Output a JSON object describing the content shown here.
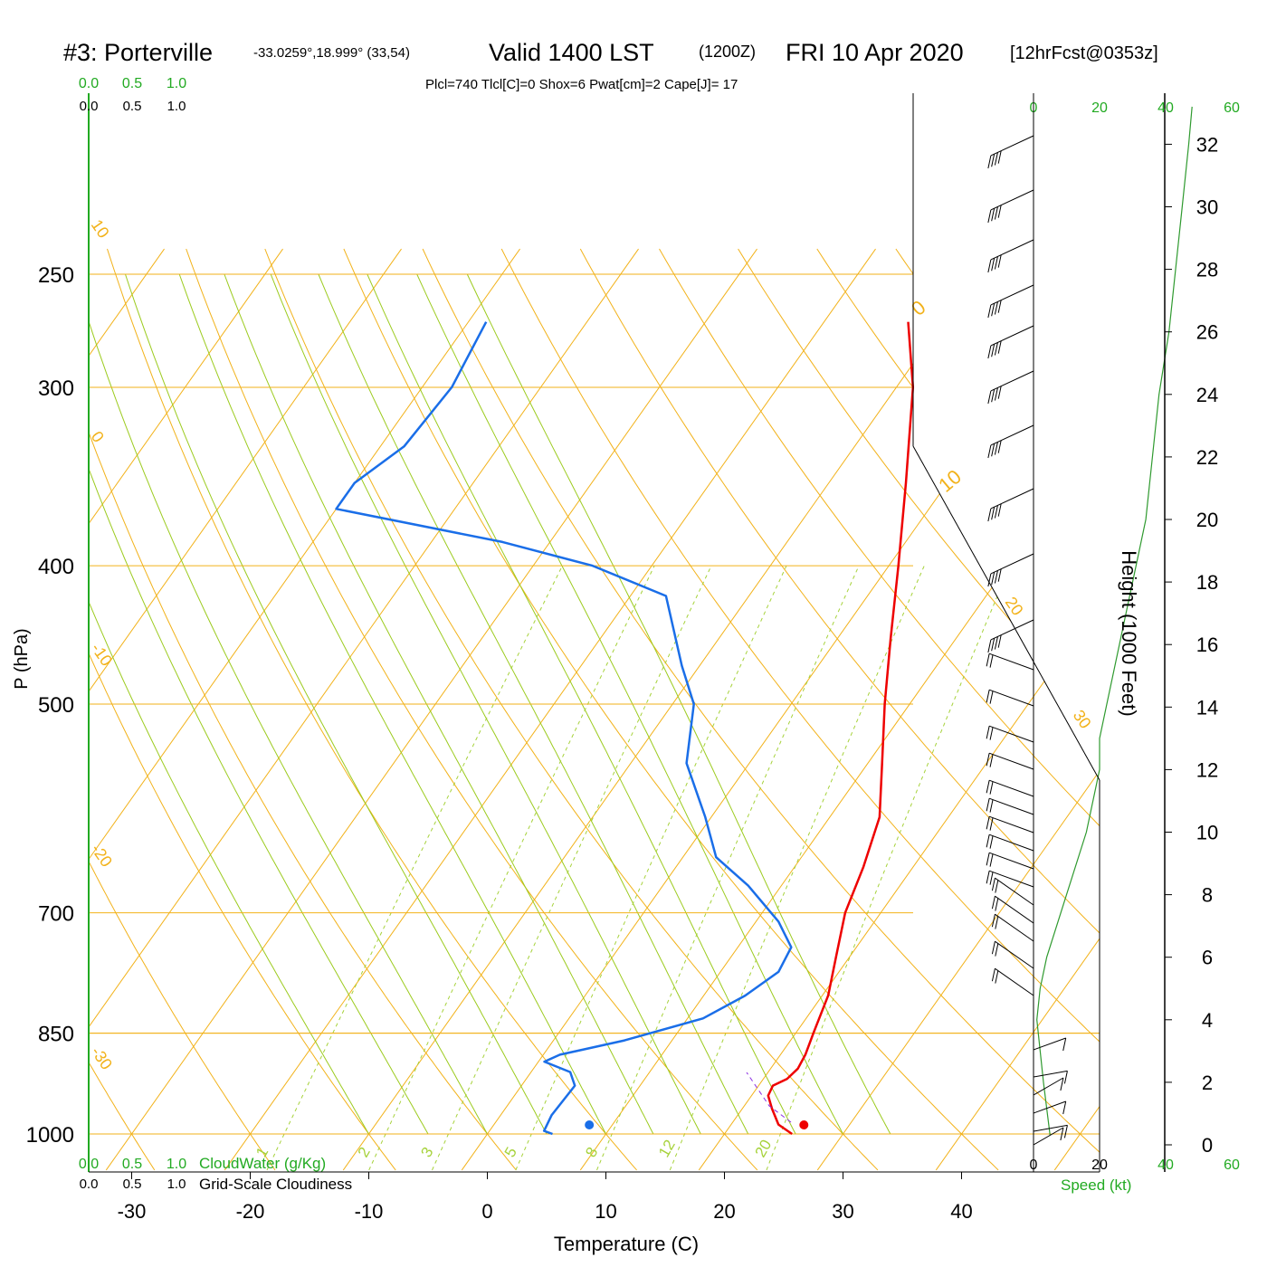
{
  "header": {
    "title_station": "#3: Porterville",
    "title_coords": "-33.0259°,18.999° (33,54)",
    "title_valid": "Valid 1400 LST",
    "title_z": "(1200Z)",
    "title_date": "FRI 10 Apr 2020",
    "title_fcst": "[12hrFcst@0353z]",
    "params": "Plcl=740 Tlcl[C]=0 Shox=6 Pwat[cm]=2 Cape[J]= 17"
  },
  "labels": {
    "y_left": "P (hPa)",
    "x_bottom": "Temperature (C)",
    "y_right": "Height (1000 Feet)",
    "cloudwater": "CloudWater (g/Kg)",
    "cloudiness": "Grid-Scale Cloudiness",
    "speed": "Speed (kt)"
  },
  "colors": {
    "temperature": "#ee0000",
    "dewpoint": "#1a6ee8",
    "isotherm": "#f2b21a",
    "dry_adiabat": "#f2b21a",
    "moist_adiabat": "#9ccb1e",
    "mixing_ratio": "#a6d23a",
    "speed_profile": "#2f9a2f",
    "green_label": "#22aa22",
    "params_text": "#aa0044"
  },
  "chart_data": {
    "type": "skew-t",
    "pressure_ticks": [
      "250",
      "300",
      "400",
      "500",
      "700",
      "850",
      "1000"
    ],
    "pressure_values": [
      250,
      300,
      400,
      500,
      700,
      850,
      1000
    ],
    "temperature_ticks": [
      "-30",
      "-20",
      "-10",
      "0",
      "10",
      "20",
      "30",
      "40"
    ],
    "temperature_values": [
      -30,
      -20,
      -10,
      0,
      10,
      20,
      30,
      40
    ],
    "height_ticks": [
      "0",
      "2",
      "4",
      "6",
      "8",
      "10",
      "12",
      "14",
      "16",
      "18",
      "20",
      "22",
      "24",
      "26",
      "28",
      "30",
      "32"
    ],
    "height_values_kft": [
      0,
      2,
      4,
      6,
      8,
      10,
      12,
      14,
      16,
      18,
      20,
      22,
      24,
      26,
      28,
      30,
      32
    ],
    "speed_ticks": [
      "0",
      "20",
      "40",
      "60"
    ],
    "speed_values_kt": [
      0,
      20,
      40,
      60
    ],
    "cloud_ticks": [
      "0.0",
      "0.5",
      "1.0"
    ],
    "cloud_values": [
      0.0,
      0.5,
      1.0
    ],
    "mixing_ratio_labels": [
      "1",
      "2",
      "3",
      "5",
      "8",
      "12",
      "20"
    ],
    "mixing_ratio_values": [
      1,
      2,
      3,
      5,
      8,
      12,
      20
    ],
    "dry_adiabat_labels": [
      "-30",
      "-20",
      "-10",
      "0",
      "10",
      "20",
      "30"
    ],
    "dry_adiabat_values_C": [
      -30,
      -20,
      -10,
      0,
      10,
      20,
      30
    ],
    "temperature_profile": [
      {
        "p": 1000,
        "t": 25.7
      },
      {
        "p": 985,
        "t": 24.0
      },
      {
        "p": 960,
        "t": 22.5
      },
      {
        "p": 940,
        "t": 21.4
      },
      {
        "p": 925,
        "t": 21.2
      },
      {
        "p": 915,
        "t": 22.0
      },
      {
        "p": 900,
        "t": 22.3
      },
      {
        "p": 880,
        "t": 22.1
      },
      {
        "p": 850,
        "t": 21.5
      },
      {
        "p": 800,
        "t": 20.5
      },
      {
        "p": 750,
        "t": 18.8
      },
      {
        "p": 700,
        "t": 17.0
      },
      {
        "p": 650,
        "t": 15.8
      },
      {
        "p": 600,
        "t": 14.2
      },
      {
        "p": 550,
        "t": 11.2
      },
      {
        "p": 500,
        "t": 7.9
      },
      {
        "p": 450,
        "t": 4.5
      },
      {
        "p": 400,
        "t": 0.8
      },
      {
        "p": 350,
        "t": -3.5
      },
      {
        "p": 300,
        "t": -8.6
      },
      {
        "p": 270,
        "t": -12.9
      }
    ],
    "dewpoint_profile": [
      {
        "p": 1000,
        "t": 5.5
      },
      {
        "p": 995,
        "t": 4.6
      },
      {
        "p": 970,
        "t": 4.3
      },
      {
        "p": 925,
        "t": 4.5
      },
      {
        "p": 905,
        "t": 3.3
      },
      {
        "p": 890,
        "t": 0.5
      },
      {
        "p": 880,
        "t": 1.4
      },
      {
        "p": 860,
        "t": 6.0
      },
      {
        "p": 830,
        "t": 11.3
      },
      {
        "p": 800,
        "t": 13.5
      },
      {
        "p": 770,
        "t": 14.9
      },
      {
        "p": 740,
        "t": 14.5
      },
      {
        "p": 710,
        "t": 11.9
      },
      {
        "p": 670,
        "t": 7.2
      },
      {
        "p": 640,
        "t": 2.8
      },
      {
        "p": 600,
        "t": -0.5
      },
      {
        "p": 550,
        "t": -5.3
      },
      {
        "p": 500,
        "t": -8.2
      },
      {
        "p": 470,
        "t": -11.5
      },
      {
        "p": 420,
        "t": -17.0
      },
      {
        "p": 400,
        "t": -25.0
      },
      {
        "p": 385,
        "t": -34.0
      },
      {
        "p": 365,
        "t": -50.0
      },
      {
        "p": 350,
        "t": -50.0
      },
      {
        "p": 330,
        "t": -48.0
      },
      {
        "p": 300,
        "t": -47.5
      },
      {
        "p": 270,
        "t": -48.5
      }
    ],
    "surface_temperature_C": 26.7,
    "surface_dewpoint_C": 8.6,
    "wind_speed_profile": [
      {
        "h": 0.3,
        "s": 5
      },
      {
        "h": 2,
        "s": 3
      },
      {
        "h": 4,
        "s": 1
      },
      {
        "h": 5,
        "s": 2
      },
      {
        "h": 6,
        "s": 4
      },
      {
        "h": 8,
        "s": 10
      },
      {
        "h": 10,
        "s": 16
      },
      {
        "h": 12,
        "s": 20
      },
      {
        "h": 13,
        "s": 20
      },
      {
        "h": 14,
        "s": 22
      },
      {
        "h": 16,
        "s": 26
      },
      {
        "h": 18,
        "s": 30
      },
      {
        "h": 20,
        "s": 34
      },
      {
        "h": 22,
        "s": 36
      },
      {
        "h": 24,
        "s": 38
      },
      {
        "h": 26,
        "s": 41
      },
      {
        "h": 28,
        "s": 43
      },
      {
        "h": 30,
        "s": 45
      },
      {
        "h": 32,
        "s": 47
      },
      {
        "h": 33.2,
        "s": 48
      }
    ]
  }
}
